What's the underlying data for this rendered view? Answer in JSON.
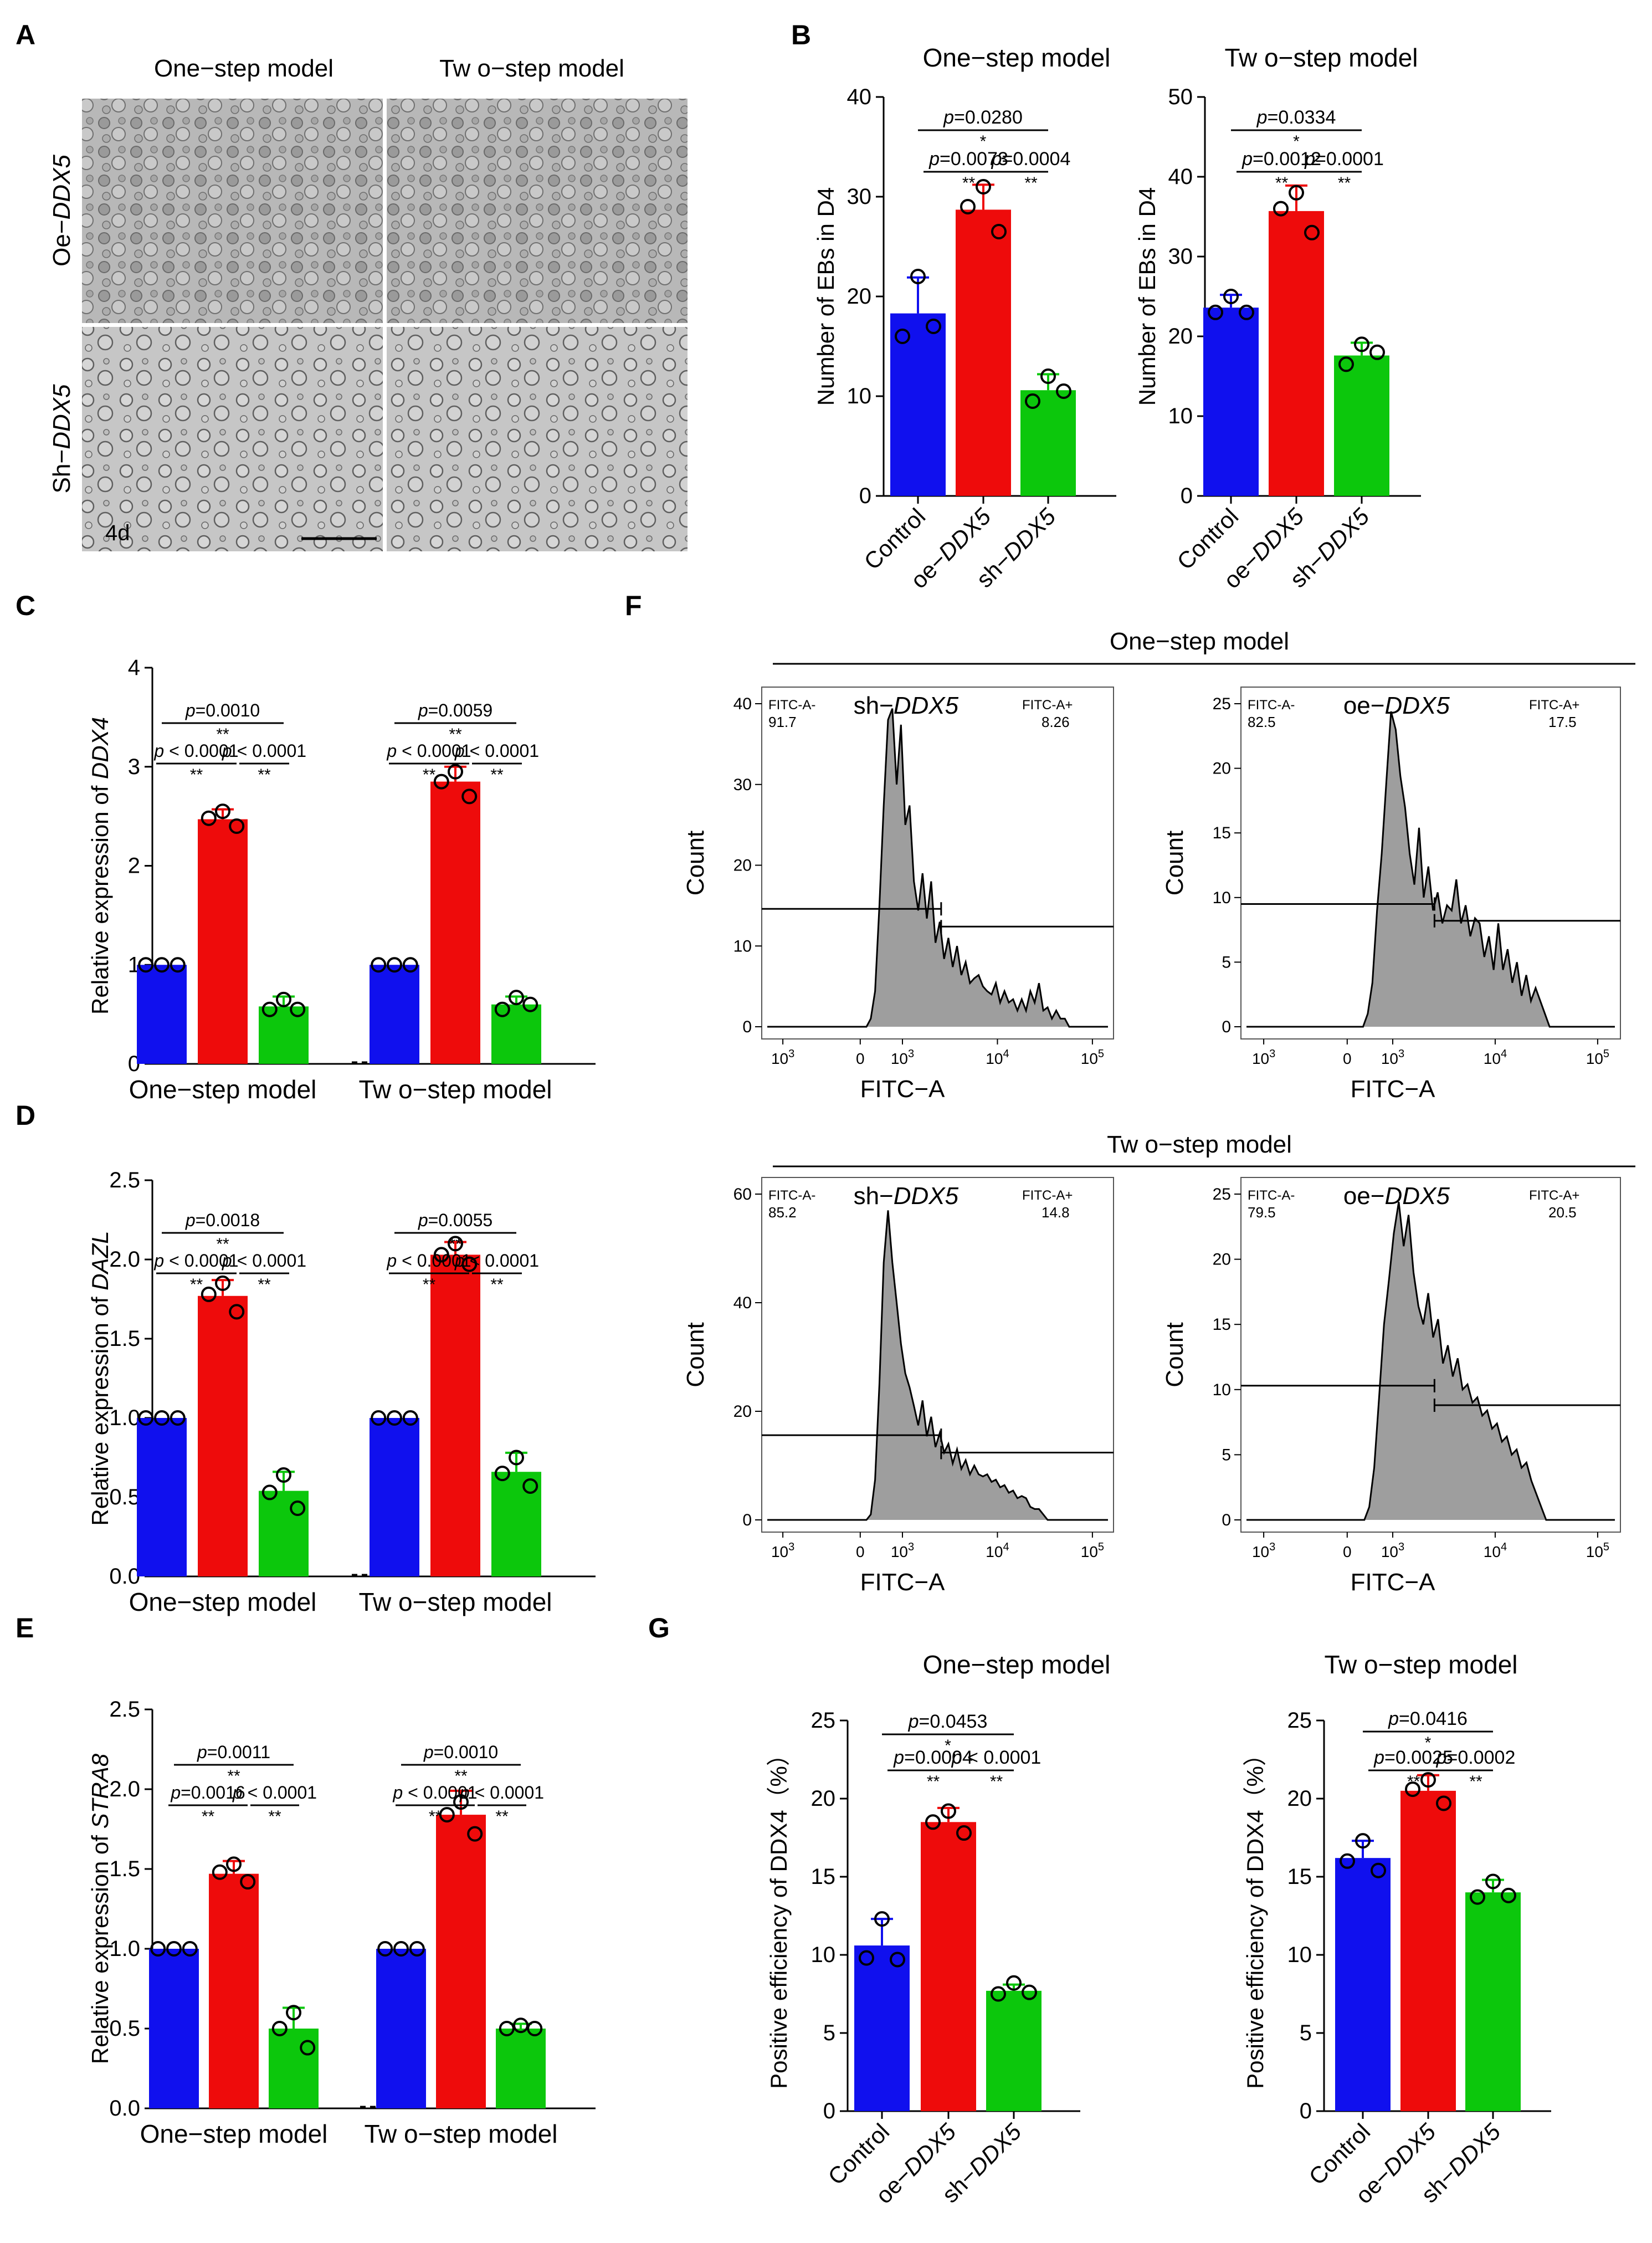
{
  "colors": {
    "control": "#1010ee",
    "oe": "#ee0b0b",
    "sh": "#0cc70c",
    "hist_fill": "#9e9e9e"
  },
  "panel_labels": {
    "A": "A",
    "B": "B",
    "C": "C",
    "D": "D",
    "E": "E",
    "F": "F",
    "G": "G"
  },
  "panel_a": {
    "col_titles": [
      "One−step model",
      "Tw o−step model"
    ],
    "row_labels": [
      {
        "pre": "Oe−",
        "gene": "DDX5"
      },
      {
        "pre": "Sh−",
        "gene": "DDX5"
      }
    ],
    "time_label": "4d"
  },
  "groups": {
    "control": "Control",
    "oe_pre": "oe−",
    "sh_pre": "sh−",
    "gene": "DDX5"
  },
  "chart_data": [
    {
      "id": "B1",
      "type": "bar",
      "title": "One−step model",
      "ylabel": "Number of EBs in D4",
      "ylim": [
        0,
        40
      ],
      "yticks": [
        "0",
        "10",
        "20",
        "30",
        "40"
      ],
      "categories": [
        "Control",
        "oe−DDX5",
        "sh−DDX5"
      ],
      "values": [
        18.3,
        28.7,
        10.6
      ],
      "errors": [
        3.6,
        2.5,
        1.6
      ],
      "points": [
        [
          22,
          16,
          17
        ],
        [
          31,
          29,
          26.5
        ],
        [
          12,
          9.5,
          10.5
        ]
      ],
      "comparisons": [
        {
          "p": "0.0280",
          "stars": "*"
        },
        {
          "p": "0.0073",
          "stars": "**"
        },
        {
          "p": "0.0004",
          "stars": "**"
        }
      ]
    },
    {
      "id": "B2",
      "type": "bar",
      "title": "Tw o−step model",
      "ylabel": "Number of EBs in D4",
      "ylim": [
        0,
        50
      ],
      "yticks": [
        "0",
        "10",
        "20",
        "30",
        "40",
        "50"
      ],
      "categories": [
        "Control",
        "oe−DDX5",
        "sh−DDX5"
      ],
      "values": [
        23.6,
        35.7,
        17.6
      ],
      "errors": [
        1.6,
        3.2,
        1.6
      ],
      "points": [
        [
          25,
          23,
          23
        ],
        [
          38,
          36,
          33
        ],
        [
          19,
          16.5,
          18
        ]
      ],
      "comparisons": [
        {
          "p": "0.0334",
          "stars": "*"
        },
        {
          "p": "0.0012",
          "stars": "**"
        },
        {
          "p": "0.0001",
          "stars": "**"
        }
      ]
    },
    {
      "id": "C",
      "type": "bar",
      "ylabel_pre": "Relative expression of ",
      "gene": "DDX4",
      "ylim": [
        0,
        4
      ],
      "yticks": [
        "0",
        "1",
        "2",
        "3",
        "4"
      ],
      "group_labels": [
        "One−step model",
        "Tw o−step model"
      ],
      "values": [
        [
          1.0,
          2.47,
          0.58
        ],
        [
          1.0,
          2.85,
          0.6
        ]
      ],
      "errors": [
        [
          0,
          0.1,
          0.1
        ],
        [
          0,
          0.15,
          0.08
        ]
      ],
      "points": [
        [
          [
            1,
            1,
            1
          ],
          [
            2.55,
            2.48,
            2.4
          ],
          [
            0.65,
            0.55,
            0.55
          ]
        ],
        [
          [
            1,
            1,
            1
          ],
          [
            2.95,
            2.85,
            2.7
          ],
          [
            0.67,
            0.55,
            0.6
          ]
        ]
      ],
      "comparisons": [
        [
          {
            "p": "0.0010",
            "stars": "**"
          },
          {
            "p": " < 0.0001",
            "stars": "**"
          },
          {
            "p": " < 0.0001",
            "stars": "**"
          }
        ],
        [
          {
            "p": "0.0059",
            "stars": "**"
          },
          {
            "p": " < 0.0001",
            "stars": "**"
          },
          {
            "p": " < 0.0001",
            "stars": "**"
          }
        ]
      ]
    },
    {
      "id": "D",
      "type": "bar",
      "ylabel_pre": "Relative expression of ",
      "gene": "DAZL",
      "ylim": [
        0,
        2.5
      ],
      "yticks": [
        "0.0",
        "0.5",
        "1.0",
        "1.5",
        "2.0",
        "2.5"
      ],
      "group_labels": [
        "One−step model",
        "Tw o−step model"
      ],
      "values": [
        [
          1.0,
          1.77,
          0.54
        ],
        [
          1.0,
          2.03,
          0.66
        ]
      ],
      "errors": [
        [
          0,
          0.1,
          0.12
        ],
        [
          0,
          0.08,
          0.12
        ]
      ],
      "points": [
        [
          [
            1,
            1,
            1
          ],
          [
            1.85,
            1.78,
            1.67
          ],
          [
            0.64,
            0.53,
            0.43
          ]
        ],
        [
          [
            1,
            1,
            1
          ],
          [
            2.1,
            2.03,
            1.97
          ],
          [
            0.75,
            0.65,
            0.57
          ]
        ]
      ],
      "comparisons": [
        [
          {
            "p": "0.0018",
            "stars": "**"
          },
          {
            "p": " < 0.0001",
            "stars": "**"
          },
          {
            "p": " < 0.0001",
            "stars": "**"
          }
        ],
        [
          {
            "p": "0.0055",
            "stars": "**"
          },
          {
            "p": " < 0.0001",
            "stars": "**"
          },
          {
            "p": " < 0.0001",
            "stars": "**"
          }
        ]
      ]
    },
    {
      "id": "E",
      "type": "bar",
      "ylabel_pre": "Relative expression of ",
      "gene": "STRA8",
      "ylim": [
        0,
        2.5
      ],
      "yticks": [
        "0.0",
        "0.5",
        "1.0",
        "1.5",
        "2.0",
        "2.5"
      ],
      "group_labels": [
        "One−step model",
        "Tw o−step model"
      ],
      "values": [
        [
          1.0,
          1.47,
          0.5
        ],
        [
          1.0,
          1.84,
          0.5
        ]
      ],
      "errors": [
        [
          0,
          0.08,
          0.13
        ],
        [
          0,
          0.15,
          0.03
        ]
      ],
      "points": [
        [
          [
            1,
            1,
            1
          ],
          [
            1.53,
            1.48,
            1.42
          ],
          [
            0.6,
            0.5,
            0.38
          ]
        ],
        [
          [
            1,
            1,
            1
          ],
          [
            1.92,
            1.84,
            1.72
          ],
          [
            0.52,
            0.5,
            0.5
          ]
        ]
      ],
      "comparisons": [
        [
          {
            "p": "0.0011",
            "stars": "**"
          },
          {
            "p": "0.0016",
            "stars": "**"
          },
          {
            "p": " < 0.0001",
            "stars": "**"
          }
        ],
        [
          {
            "p": "0.0010",
            "stars": "**"
          },
          {
            "p": " < 0.0001",
            "stars": "**"
          },
          {
            "p": " < 0.0001",
            "stars": "**"
          }
        ]
      ]
    },
    {
      "id": "F",
      "type": "histogram",
      "xlabel": "FITC−A",
      "ylabel": "Count",
      "xtick_labels": [
        "10",
        "3",
        "0",
        "10",
        "3",
        "10",
        "4",
        "10",
        "5"
      ],
      "sections": [
        {
          "title": "One−step model"
        },
        {
          "title": "Tw o−step model"
        }
      ],
      "plots": [
        {
          "label_pre": "sh−",
          "label_gene": "DDX5",
          "gate_neg": "FITC-A-",
          "neg": "91.7",
          "gate_pos": "FITC-A+",
          "pos": "8.26",
          "ylim": [
            0,
            40
          ],
          "yticks": [
            "0",
            "10",
            "20",
            "30",
            "40"
          ],
          "gate_y": [
            14.6,
            12.4
          ],
          "counts": [
            0,
            0,
            0,
            0,
            0,
            0,
            0,
            0,
            0,
            0,
            0,
            0,
            0,
            0,
            0,
            0,
            0,
            0,
            0,
            0,
            0,
            0,
            0,
            0,
            1,
            5,
            15,
            28,
            38,
            40,
            30,
            38,
            25,
            28,
            18,
            15,
            19,
            14,
            18,
            11,
            13,
            9,
            11,
            8,
            10,
            7,
            8,
            6,
            6,
            7,
            5,
            5,
            4,
            6,
            3,
            5,
            3,
            4,
            2,
            4,
            2,
            5,
            3,
            6,
            2,
            3,
            1,
            2,
            1,
            1,
            0,
            0,
            0,
            0,
            0,
            0,
            0,
            0,
            0,
            0
          ]
        },
        {
          "label_pre": "oe−",
          "label_gene": "DDX5",
          "gate_neg": "FITC-A-",
          "neg": "82.5",
          "gate_pos": "FITC-A+",
          "pos": "17.5",
          "ylim": [
            0,
            25
          ],
          "yticks": [
            "0",
            "5",
            "10",
            "15",
            "20",
            "25"
          ],
          "gate_y": [
            9.5,
            8.2
          ],
          "counts": [
            0,
            0,
            0,
            0,
            0,
            0,
            0,
            0,
            0,
            0,
            0,
            0,
            0,
            0,
            0,
            0,
            0,
            0,
            0,
            0,
            0,
            0,
            0,
            0,
            0,
            0,
            1,
            4,
            9,
            14,
            19,
            25,
            23,
            20,
            17,
            14,
            11,
            16,
            10,
            13,
            9,
            11,
            8,
            10,
            9,
            12,
            8,
            10,
            7,
            9,
            8,
            6,
            7,
            5,
            8,
            5,
            6,
            4,
            5,
            3,
            4,
            2,
            3,
            2,
            1,
            0,
            0,
            0,
            0,
            0,
            0,
            0,
            0,
            0,
            0,
            0,
            0,
            0,
            0,
            0
          ]
        },
        {
          "label_pre": "sh−",
          "label_gene": "DDX5",
          "gate_neg": "FITC-A-",
          "neg": "85.2",
          "gate_pos": "FITC-A+",
          "pos": "14.8",
          "ylim": [
            0,
            60
          ],
          "yticks": [
            "0",
            "20",
            "40",
            "60"
          ],
          "gate_y": [
            15.6,
            12.4
          ],
          "counts": [
            0,
            0,
            0,
            0,
            0,
            0,
            0,
            0,
            0,
            0,
            0,
            0,
            0,
            0,
            0,
            0,
            0,
            0,
            0,
            0,
            0,
            0,
            0,
            0,
            1,
            8,
            25,
            48,
            57,
            48,
            40,
            33,
            27,
            25,
            21,
            18,
            22,
            16,
            19,
            14,
            16,
            13,
            14,
            11,
            13,
            10,
            11,
            9,
            10,
            9,
            8,
            9,
            7,
            8,
            6,
            7,
            5,
            6,
            4,
            5,
            4,
            3,
            2,
            2,
            1,
            0,
            0,
            0,
            0,
            0,
            0,
            0,
            0,
            0,
            0,
            0,
            0,
            0,
            0,
            0
          ]
        },
        {
          "label_pre": "oe−",
          "label_gene": "DDX5",
          "gate_neg": "FITC-A-",
          "neg": "79.5",
          "gate_pos": "FITC-A+",
          "pos": "20.5",
          "ylim": [
            0,
            25
          ],
          "yticks": [
            "0",
            "5",
            "10",
            "15",
            "20",
            "25"
          ],
          "gate_y": [
            10.3,
            8.8
          ],
          "counts": [
            0,
            0,
            0,
            0,
            0,
            0,
            0,
            0,
            0,
            0,
            0,
            0,
            0,
            0,
            0,
            0,
            0,
            0,
            0,
            0,
            0,
            0,
            0,
            0,
            0,
            1,
            4,
            10,
            15,
            19,
            22,
            25,
            21,
            24,
            19,
            17,
            15,
            18,
            14,
            16,
            12,
            14,
            11,
            13,
            10,
            11,
            9,
            10,
            8,
            9,
            7,
            8,
            6,
            7,
            5,
            6,
            4,
            5,
            3,
            2,
            1,
            0,
            0,
            0,
            0,
            0,
            0,
            0,
            0,
            0,
            0,
            0,
            0,
            0,
            0,
            0
          ]
        }
      ]
    },
    {
      "id": "G1",
      "type": "bar",
      "title": "One−step model",
      "ylabel": "Positive efficiency of DDX4（%）",
      "ylim": [
        0,
        25
      ],
      "yticks": [
        "0",
        "5",
        "10",
        "15",
        "20",
        "25"
      ],
      "categories": [
        "Control",
        "oe−DDX5",
        "sh−DDX5"
      ],
      "values": [
        10.6,
        18.5,
        7.7
      ],
      "errors": [
        1.7,
        0.9,
        0.4
      ],
      "points": [
        [
          12.3,
          9.8,
          9.7
        ],
        [
          19.2,
          18.5,
          17.8
        ],
        [
          8.2,
          7.5,
          7.6
        ]
      ],
      "comparisons": [
        {
          "p": "0.0453",
          "stars": "*"
        },
        {
          "p": "0.0004",
          "stars": "**"
        },
        {
          "p": " < 0.0001",
          "stars": "**"
        }
      ]
    },
    {
      "id": "G2",
      "type": "bar",
      "title": "Tw o−step model",
      "ylabel": "Positive efficiency of DDX4（%）",
      "ylim": [
        0,
        25
      ],
      "yticks": [
        "0",
        "5",
        "10",
        "15",
        "20",
        "25"
      ],
      "categories": [
        "Control",
        "oe−DDX5",
        "sh−DDX5"
      ],
      "values": [
        16.2,
        20.5,
        14.0
      ],
      "errors": [
        1.1,
        1.0,
        0.8
      ],
      "points": [
        [
          17.3,
          16,
          15.4
        ],
        [
          21.2,
          20.6,
          19.7
        ],
        [
          14.7,
          13.7,
          13.8
        ]
      ],
      "comparisons": [
        {
          "p": "0.0416",
          "stars": "*"
        },
        {
          "p": "0.0025",
          "stars": "**"
        },
        {
          "p": "0.0002",
          "stars": "**"
        }
      ]
    }
  ]
}
